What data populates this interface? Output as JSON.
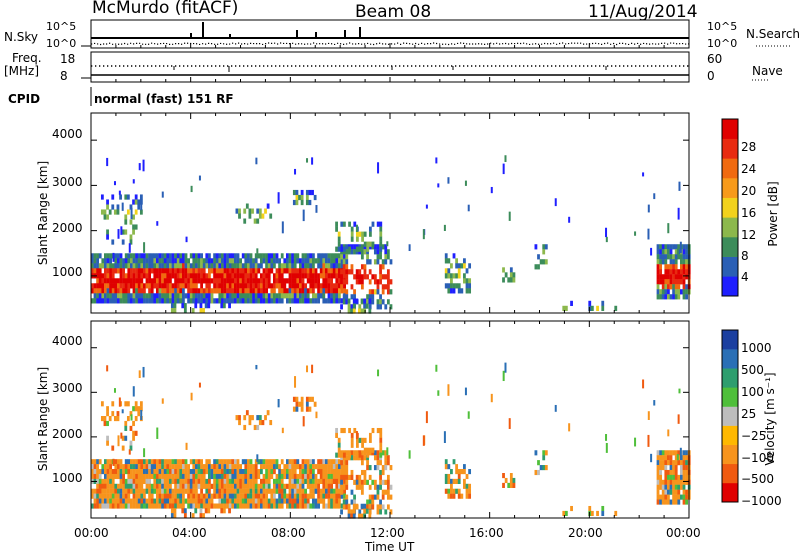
{
  "header": {
    "station": "McMurdo (fitACF)",
    "beam": "Beam 08",
    "date": "11/Aug/2014"
  },
  "top_panels": {
    "nsky_label": "N.Sky",
    "nsearch_label": "N.Search",
    "noise_ticks": [
      "10^5",
      "10^0"
    ],
    "freq_label": "Freq.",
    "freq_unit": "[MHz]",
    "freq_ticks": [
      "18",
      "8"
    ],
    "nave_label": "Nave",
    "nave_ticks": [
      "60",
      "0"
    ],
    "cpid_label": "CPID",
    "cpid_value": "normal (fast) 151 RF"
  },
  "colors": {
    "power": [
      "#1f1fff",
      "#2a5fb5",
      "#3c8c5a",
      "#8cb84c",
      "#f2d21c",
      "#f79a1b",
      "#f06a10",
      "#e82a10",
      "#e00000"
    ],
    "velocity": [
      "#e00000",
      "#f05a10",
      "#f7941d",
      "#ffb800",
      "#bdbdbd",
      "#4fbf3a",
      "#2e9e6e",
      "#2a6fb5",
      "#1b3fa0"
    ]
  },
  "chart_data": [
    {
      "type": "heatmap",
      "panel": "power",
      "xlabel": "",
      "ylabel": "Slant Range [km]",
      "x_ticks": [
        "00:00",
        "04:00",
        "08:00",
        "12:00",
        "16:00",
        "20:00",
        "00:00"
      ],
      "x_range_hours": [
        0,
        24
      ],
      "y_ticks": [
        "1000",
        "2000",
        "3000",
        "4000"
      ],
      "ylim": [
        180,
        4600
      ],
      "colorbar_label": "Power [dB]",
      "colorbar_ticks": [
        "4",
        "8",
        "12",
        "16",
        "20",
        "24",
        "28"
      ],
      "colorbar_range": [
        0,
        32
      ]
    },
    {
      "type": "heatmap",
      "panel": "velocity",
      "xlabel": "Time UT",
      "ylabel": "Slant Range [km]",
      "x_ticks": [
        "00:00",
        "04:00",
        "08:00",
        "12:00",
        "16:00",
        "20:00",
        "00:00"
      ],
      "x_range_hours": [
        0,
        24
      ],
      "y_ticks": [
        "1000",
        "2000",
        "3000",
        "4000"
      ],
      "ylim": [
        180,
        4600
      ],
      "colorbar_label": "Velocity [m s⁻¹]",
      "colorbar_ticks": [
        "1000",
        "500",
        "100",
        "25",
        "−25",
        "−100",
        "−500",
        "−1000"
      ]
    }
  ]
}
